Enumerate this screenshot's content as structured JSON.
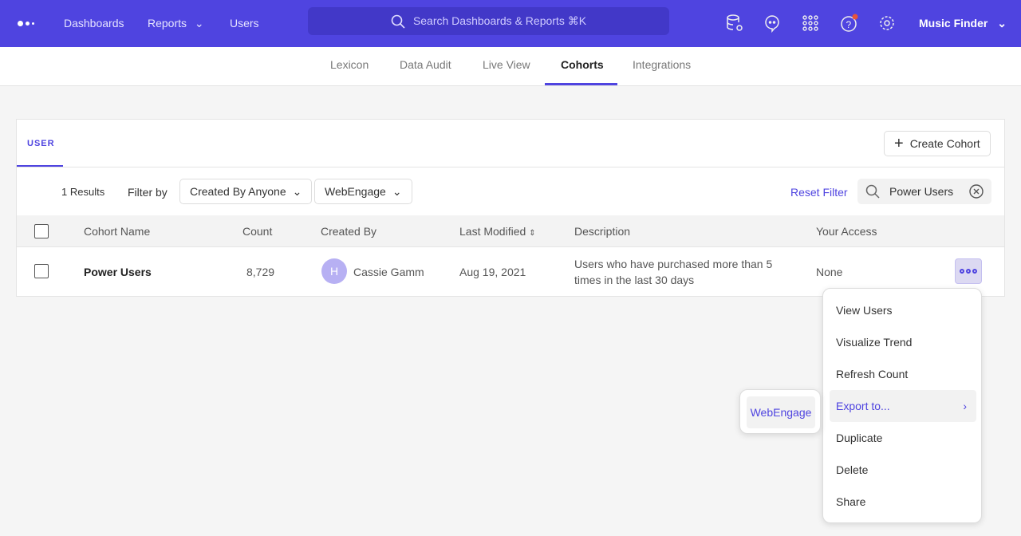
{
  "topbar": {
    "nav": [
      "Dashboards",
      "Reports",
      "Users"
    ],
    "search_placeholder": "Search Dashboards & Reports ⌘K",
    "project": "Music Finder",
    "icons": [
      "database-settings-icon",
      "chat-icon",
      "apps-grid-icon",
      "help-icon",
      "gear-icon"
    ],
    "accent": "#4f44e0",
    "notification_color": "#e8533a"
  },
  "subnav": {
    "tabs": [
      "Lexicon",
      "Data Audit",
      "Live View",
      "Cohorts",
      "Integrations"
    ],
    "active": "Cohorts"
  },
  "card": {
    "tab": "USER",
    "create_label": "Create Cohort",
    "results": "1 Results",
    "filter_by": "Filter by",
    "filter_creator": "Created By Anyone",
    "filter_source": "WebEngage",
    "reset": "Reset Filter",
    "search_value": "Power Users"
  },
  "table": {
    "columns": [
      "Cohort Name",
      "Count",
      "Created By",
      "Last Modified",
      "Description",
      "Your Access"
    ],
    "rows": [
      {
        "name": "Power Users",
        "count": "8,729",
        "avatar": "H",
        "creator": "Cassie Gamm",
        "modified": "Aug 19, 2021",
        "description": "Users who have purchased more than 5 times in the last 30 days",
        "access": "None"
      }
    ]
  },
  "menu": {
    "items": [
      "View Users",
      "Visualize Trend",
      "Refresh Count",
      "Export to...",
      "Duplicate",
      "Delete",
      "Share"
    ],
    "highlighted": "Export to...",
    "submenu": [
      "WebEngage"
    ]
  }
}
